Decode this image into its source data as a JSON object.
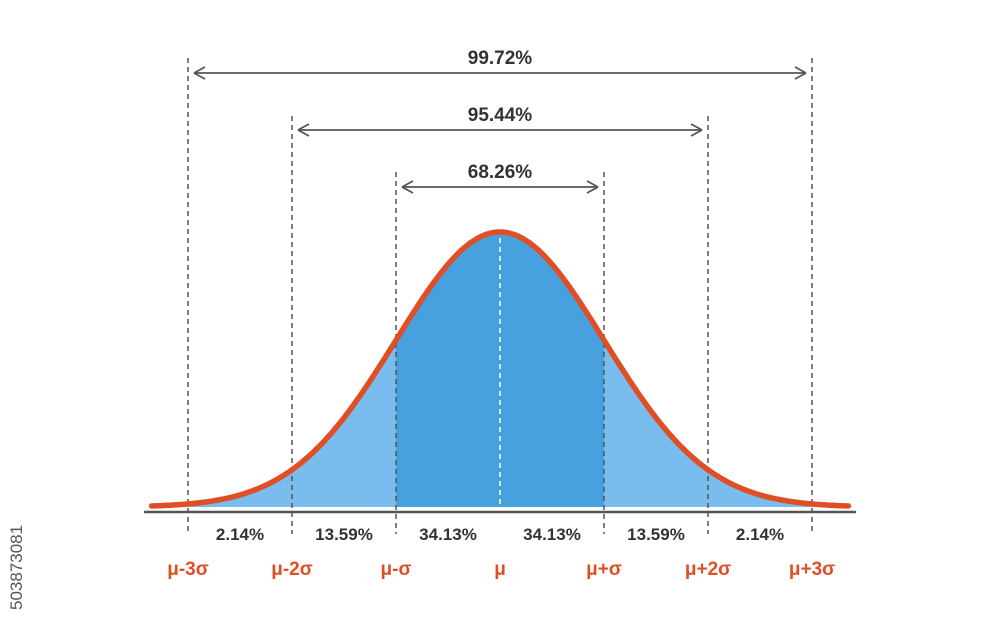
{
  "colors": {
    "curve": "#e04e25",
    "tail": "#79bdee",
    "center": "#48a1df",
    "line": "#555555",
    "axis": "#555555",
    "text": "#333333"
  },
  "ranges": [
    {
      "label": "99.72%",
      "from": -3,
      "to": 3
    },
    {
      "label": "95.44%",
      "from": -2,
      "to": 2
    },
    {
      "label": "68.26%",
      "from": -1,
      "to": 1
    }
  ],
  "segments": [
    {
      "label": "2.14%",
      "from": -3,
      "to": -2
    },
    {
      "label": "13.59%",
      "from": -2,
      "to": -1
    },
    {
      "label": "34.13%",
      "from": -1,
      "to": 0
    },
    {
      "label": "34.13%",
      "from": 0,
      "to": 1
    },
    {
      "label": "13.59%",
      "from": 1,
      "to": 2
    },
    {
      "label": "2.14%",
      "from": 2,
      "to": 3
    }
  ],
  "sigma_labels": [
    {
      "label": "μ-3σ",
      "at": -3
    },
    {
      "label": "μ-2σ",
      "at": -2
    },
    {
      "label": "μ-σ",
      "at": -1
    },
    {
      "label": "μ",
      "at": 0
    },
    {
      "label": "μ+σ",
      "at": 1
    },
    {
      "label": "μ+2σ",
      "at": 2
    },
    {
      "label": "μ+3σ",
      "at": 3
    }
  ],
  "stock_id": "503873081"
}
